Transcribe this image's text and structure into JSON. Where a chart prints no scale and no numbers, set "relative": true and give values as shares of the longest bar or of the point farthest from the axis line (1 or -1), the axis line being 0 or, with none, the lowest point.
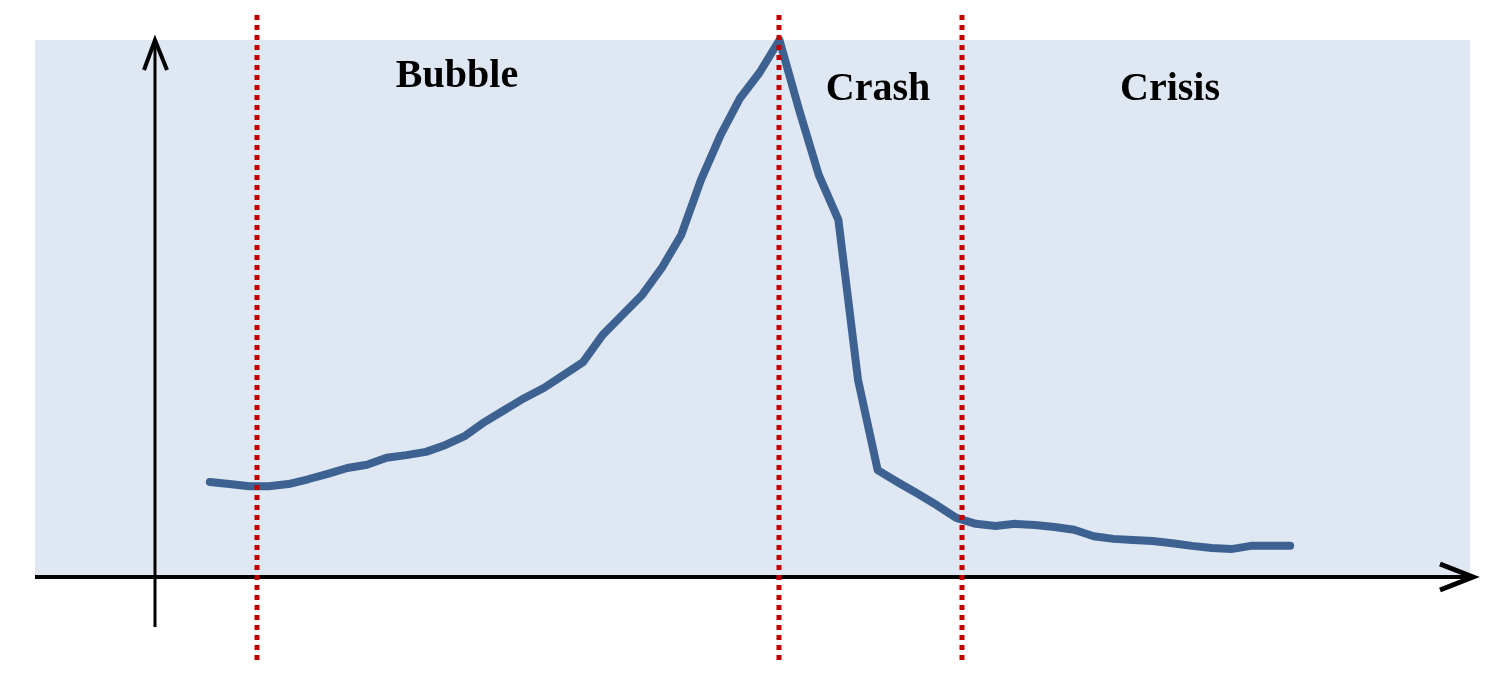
{
  "chart_data": {
    "type": "line",
    "relative": true,
    "categories": [
      null,
      null,
      null,
      null,
      null,
      null,
      null,
      null,
      null,
      null,
      null,
      null,
      null,
      null,
      null,
      null,
      null,
      null,
      null,
      null,
      null,
      null,
      null,
      null,
      null,
      null,
      null,
      null,
      null,
      null,
      null,
      null,
      null,
      null,
      null,
      null,
      null,
      null,
      null,
      null,
      null,
      null,
      null,
      null,
      null,
      null,
      null,
      null,
      null,
      null,
      null,
      null,
      null,
      null,
      null,
      null
    ],
    "series": [
      {
        "color": "#3d6291",
        "values": [
          0.177,
          0.173,
          0.169,
          0.169,
          0.173,
          0.182,
          0.192,
          0.203,
          0.209,
          0.222,
          0.227,
          0.233,
          0.246,
          0.263,
          0.289,
          0.311,
          0.333,
          0.352,
          0.376,
          0.4,
          0.451,
          0.488,
          0.525,
          0.575,
          0.637,
          0.739,
          0.823,
          0.892,
          0.94,
          1,
          0.87,
          0.749,
          0.665,
          0.367,
          0.199,
          0.177,
          0.156,
          0.134,
          0.11,
          0.099,
          0.095,
          0.099,
          0.097,
          0.093,
          0.088,
          0.076,
          0.071,
          0.069,
          0.067,
          0.063,
          0.058,
          0.054,
          0.052,
          0.058,
          0.058,
          0.058
        ]
      }
    ],
    "annotations": [
      "Bubble",
      "Crash",
      "Crisis"
    ]
  }
}
